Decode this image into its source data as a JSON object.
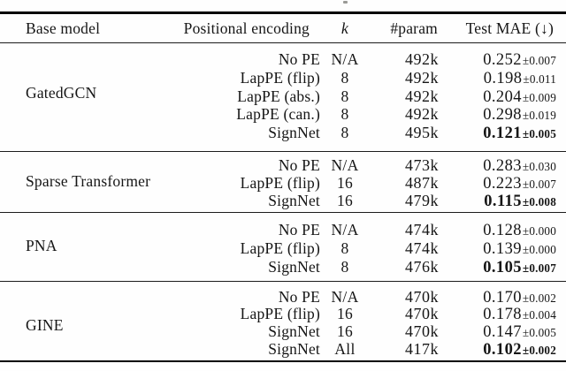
{
  "colors": {
    "text": "#161616",
    "rule": "#000000",
    "background": "#fefefe"
  },
  "table": {
    "headers": [
      "Base model",
      "Positional encoding",
      "k",
      "#param",
      "Test MAE (↓)"
    ],
    "groups": [
      {
        "base_model": "GatedGCN",
        "rows": [
          {
            "pe": "No PE",
            "k": "N/A",
            "params": "492k",
            "mae": "0.252",
            "std": "±0.007",
            "bold": false
          },
          {
            "pe": "LapPE (flip)",
            "k": "8",
            "params": "492k",
            "mae": "0.198",
            "std": "±0.011",
            "bold": false
          },
          {
            "pe": "LapPE (abs.)",
            "k": "8",
            "params": "492k",
            "mae": "0.204",
            "std": "±0.009",
            "bold": false
          },
          {
            "pe": "LapPE (can.)",
            "k": "8",
            "params": "492k",
            "mae": "0.298",
            "std": "±0.019",
            "bold": false
          },
          {
            "pe": "SignNet",
            "k": "8",
            "params": "495k",
            "mae": "0.121",
            "std": "±0.005",
            "bold": true
          }
        ]
      },
      {
        "base_model": "Sparse Transformer",
        "rows": [
          {
            "pe": "No PE",
            "k": "N/A",
            "params": "473k",
            "mae": "0.283",
            "std": "±0.030",
            "bold": false
          },
          {
            "pe": "LapPE (flip)",
            "k": "16",
            "params": "487k",
            "mae": "0.223",
            "std": "±0.007",
            "bold": false
          },
          {
            "pe": "SignNet",
            "k": "16",
            "params": "479k",
            "mae": "0.115",
            "std": "±0.008",
            "bold": true
          }
        ]
      },
      {
        "base_model": "PNA",
        "rows": [
          {
            "pe": "No PE",
            "k": "N/A",
            "params": "474k",
            "mae": "0.128",
            "std": "±0.000",
            "bold": false
          },
          {
            "pe": "LapPE (flip)",
            "k": "8",
            "params": "474k",
            "mae": "0.139",
            "std": "±0.000",
            "bold": false
          },
          {
            "pe": "SignNet",
            "k": "8",
            "params": "476k",
            "mae": "0.105",
            "std": "±0.007",
            "bold": true
          }
        ]
      },
      {
        "base_model": "GINE",
        "rows": [
          {
            "pe": "No PE",
            "k": "N/A",
            "params": "470k",
            "mae": "0.170",
            "std": "±0.002",
            "bold": false
          },
          {
            "pe": "LapPE (flip)",
            "k": "16",
            "params": "470k",
            "mae": "0.178",
            "std": "±0.004",
            "bold": false
          },
          {
            "pe": "SignNet",
            "k": "16",
            "params": "470k",
            "mae": "0.147",
            "std": "±0.005",
            "bold": false
          },
          {
            "pe": "SignNet",
            "k": "All",
            "params": "417k",
            "mae": "0.102",
            "std": "±0.002",
            "bold": true
          }
        ]
      }
    ]
  }
}
